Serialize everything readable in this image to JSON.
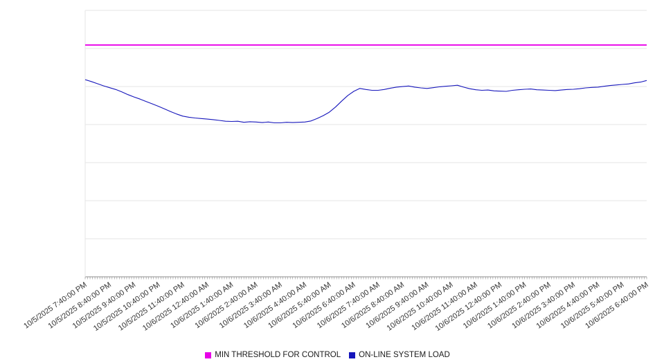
{
  "chart_data": {
    "type": "line",
    "title": "",
    "xlabel": "",
    "ylabel": "",
    "ylim": [
      0,
      100
    ],
    "y_tick_labels_visible": false,
    "grid": "horizontal",
    "gridline_count": 8,
    "legend_position": "bottom-center",
    "x_labels": [
      "10/5/2025 7:40:00 PM",
      "10/5/2025 8:40:00 PM",
      "10/5/2025 9:40:00 PM",
      "10/5/2025 10:40:00 PM",
      "10/5/2025 11:40:00 PM",
      "10/6/2025 12:40:00 AM",
      "10/6/2025 1:40:00 AM",
      "10/6/2025 2:40:00 AM",
      "10/6/2025 3:40:00 AM",
      "10/6/2025 4:40:00 AM",
      "10/6/2025 5:40:00 AM",
      "10/6/2025 6:40:00 AM",
      "10/6/2025 7:40:00 AM",
      "10/6/2025 8:40:00 AM",
      "10/6/2025 9:40:00 AM",
      "10/6/2025 10:40:00 AM",
      "10/6/2025 11:40:00 AM",
      "10/6/2025 12:40:00 PM",
      "10/6/2025 1:40:00 PM",
      "10/6/2025 2:40:00 PM",
      "10/6/2025 3:40:00 PM",
      "10/6/2025 4:40:00 PM",
      "10/6/2025 5:40:00 PM",
      "10/6/2025 6:40:00 PM"
    ],
    "series": [
      {
        "name": "MIN THRESHOLD FOR CONTROL",
        "type": "threshold",
        "color": "#e800e8",
        "value": 87
      },
      {
        "name": "ON-LINE SYSTEM LOAD",
        "type": "line",
        "color": "#1515bb",
        "values": [
          74.0,
          73.3,
          72.5,
          71.7,
          71.0,
          70.3,
          69.4,
          68.4,
          67.5,
          66.7,
          65.8,
          64.9,
          64.0,
          63.0,
          62.0,
          61.1,
          60.3,
          59.9,
          59.6,
          59.4,
          59.2,
          59.0,
          58.7,
          58.4,
          58.3,
          58.4,
          58.0,
          58.2,
          58.1,
          57.9,
          58.1,
          57.8,
          57.8,
          58.0,
          57.9,
          58.0,
          58.1,
          58.5,
          59.4,
          60.5,
          61.8,
          63.7,
          65.9,
          68.0,
          69.6,
          70.7,
          70.3,
          70.0,
          70.0,
          70.3,
          70.8,
          71.2,
          71.4,
          71.6,
          71.2,
          70.9,
          70.7,
          71.0,
          71.3,
          71.5,
          71.7,
          71.9,
          71.2,
          70.6,
          70.2,
          70.0,
          70.1,
          69.8,
          69.7,
          69.6,
          70.0,
          70.2,
          70.4,
          70.5,
          70.2,
          70.1,
          70.0,
          69.9,
          70.1,
          70.3,
          70.4,
          70.6,
          70.9,
          71.1,
          71.2,
          71.5,
          71.8,
          72.0,
          72.2,
          72.4,
          72.8,
          73.1,
          73.7
        ]
      }
    ]
  },
  "colors": {
    "gridline": "#e6e6e6",
    "axis": "#8c8c8c",
    "tick": "#8c8c8c",
    "label": "#333333",
    "background": "#ffffff"
  }
}
